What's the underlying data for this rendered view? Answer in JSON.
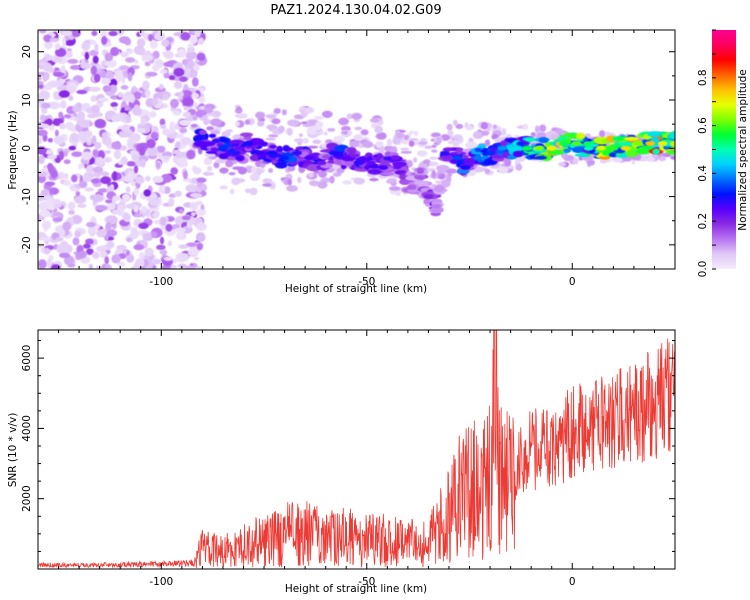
{
  "figure": {
    "title": "PAZ1.2024.130.04.02.G09"
  },
  "chart_data": [
    {
      "type": "heatmap",
      "xlabel": "Height of straight line (km)",
      "ylabel": "Frequency (Hz)",
      "xlim": [
        -130,
        25
      ],
      "ylim": [
        -25,
        24.5
      ],
      "x_ticks": [
        -100,
        -50,
        0
      ],
      "y_ticks": [
        -20,
        -10,
        0,
        10,
        20
      ],
      "grid": false,
      "colorbar": {
        "label": "Normalized spectral amplitude",
        "range": [
          0,
          1
        ],
        "ticks": [
          0.0,
          0.2,
          0.4,
          0.6,
          0.8
        ],
        "colormap": [
          "#f4ecfb",
          "#e0c8f7",
          "#b974f2",
          "#8a2be2",
          "#5a00ff",
          "#0010ff",
          "#0070ff",
          "#00d0ff",
          "#00ffb0",
          "#00ff30",
          "#80ff00",
          "#e8ff00",
          "#ffc000",
          "#ff6000",
          "#ff0000",
          "#ff0060",
          "#ff0090"
        ]
      },
      "ridge": [
        {
          "x": -91,
          "f": 2,
          "a": 0.3
        },
        {
          "x": -88,
          "f": 1,
          "a": 0.25
        },
        {
          "x": -85,
          "f": 0,
          "a": 0.33
        },
        {
          "x": -82,
          "f": -1,
          "a": 0.28
        },
        {
          "x": -79,
          "f": 1,
          "a": 0.3
        },
        {
          "x": -76,
          "f": -1,
          "a": 0.27
        },
        {
          "x": -73,
          "f": -1,
          "a": 0.3
        },
        {
          "x": -70,
          "f": -2,
          "a": 0.32
        },
        {
          "x": -67,
          "f": -1,
          "a": 0.28
        },
        {
          "x": -64,
          "f": -2,
          "a": 0.26
        },
        {
          "x": -61,
          "f": -3,
          "a": 0.22
        },
        {
          "x": -58,
          "f": -1,
          "a": 0.3
        },
        {
          "x": -55,
          "f": -2,
          "a": 0.25
        },
        {
          "x": -52,
          "f": -3,
          "a": 0.28
        },
        {
          "x": -49,
          "f": -3,
          "a": 0.24
        },
        {
          "x": -46,
          "f": -4,
          "a": 0.26
        },
        {
          "x": -43,
          "f": -2,
          "a": 0.22
        },
        {
          "x": -41,
          "f": -6,
          "a": 0.18
        },
        {
          "x": -39,
          "f": -8,
          "a": 0.14
        },
        {
          "x": -37,
          "f": -6,
          "a": 0.15
        },
        {
          "x": -35,
          "f": -10,
          "a": 0.2
        },
        {
          "x": -33,
          "f": -12,
          "a": 0.12
        },
        {
          "x": -31,
          "f": -1,
          "a": 0.28
        },
        {
          "x": -28,
          "f": -2,
          "a": 0.35
        },
        {
          "x": -26,
          "f": -4,
          "a": 0.3
        },
        {
          "x": -23,
          "f": -2,
          "a": 0.38
        },
        {
          "x": -20,
          "f": -1,
          "a": 0.33
        },
        {
          "x": -17,
          "f": 0,
          "a": 0.4
        },
        {
          "x": -14,
          "f": 0,
          "a": 0.45
        },
        {
          "x": -11,
          "f": 0,
          "a": 0.55
        },
        {
          "x": -8,
          "f": 0,
          "a": 0.62
        },
        {
          "x": -5,
          "f": 0,
          "a": 0.7
        },
        {
          "x": -2,
          "f": 1,
          "a": 0.55
        },
        {
          "x": 1,
          "f": 1,
          "a": 0.6
        },
        {
          "x": 4,
          "f": 0,
          "a": 0.5
        },
        {
          "x": 7,
          "f": 0,
          "a": 0.68
        },
        {
          "x": 10,
          "f": 0,
          "a": 0.58
        },
        {
          "x": 13,
          "f": 0,
          "a": 0.72
        },
        {
          "x": 16,
          "f": 1,
          "a": 0.62
        },
        {
          "x": 19,
          "f": 1,
          "a": 0.75
        },
        {
          "x": 22,
          "f": 1,
          "a": 0.7
        },
        {
          "x": 25,
          "f": 1,
          "a": 0.66
        }
      ]
    },
    {
      "type": "line",
      "xlabel": "Height of straight line (km)",
      "ylabel": "SNR (10 * v/v)",
      "xlim": [
        -130,
        25
      ],
      "ylim": [
        0,
        6800
      ],
      "x_ticks": [
        -100,
        -50,
        0
      ],
      "y_ticks": [
        2000,
        4000,
        6000
      ],
      "grid": false,
      "color": "#ee3a34",
      "series": [
        {
          "x": [
            -130,
            -120,
            -110,
            -100,
            -92,
            -90,
            -85,
            -80,
            -75,
            -70,
            -65,
            -60,
            -55,
            -50,
            -45,
            -40,
            -35,
            -32,
            -30,
            -28,
            -25,
            -22,
            -20,
            -19,
            -18,
            -16,
            -14,
            -12,
            -10,
            -8,
            -5,
            -3,
            -1,
            0,
            3,
            6,
            10,
            14,
            18,
            22,
            25
          ],
          "values": [
            120,
            110,
            130,
            150,
            180,
            600,
            500,
            700,
            900,
            1000,
            1000,
            900,
            900,
            850,
            800,
            750,
            700,
            1300,
            1500,
            2000,
            2200,
            2300,
            2500,
            6700,
            2800,
            2700,
            2900,
            3100,
            3400,
            3500,
            3600,
            3700,
            3800,
            3900,
            4000,
            4200,
            4300,
            4500,
            4700,
            4800,
            5000
          ]
        }
      ]
    }
  ]
}
